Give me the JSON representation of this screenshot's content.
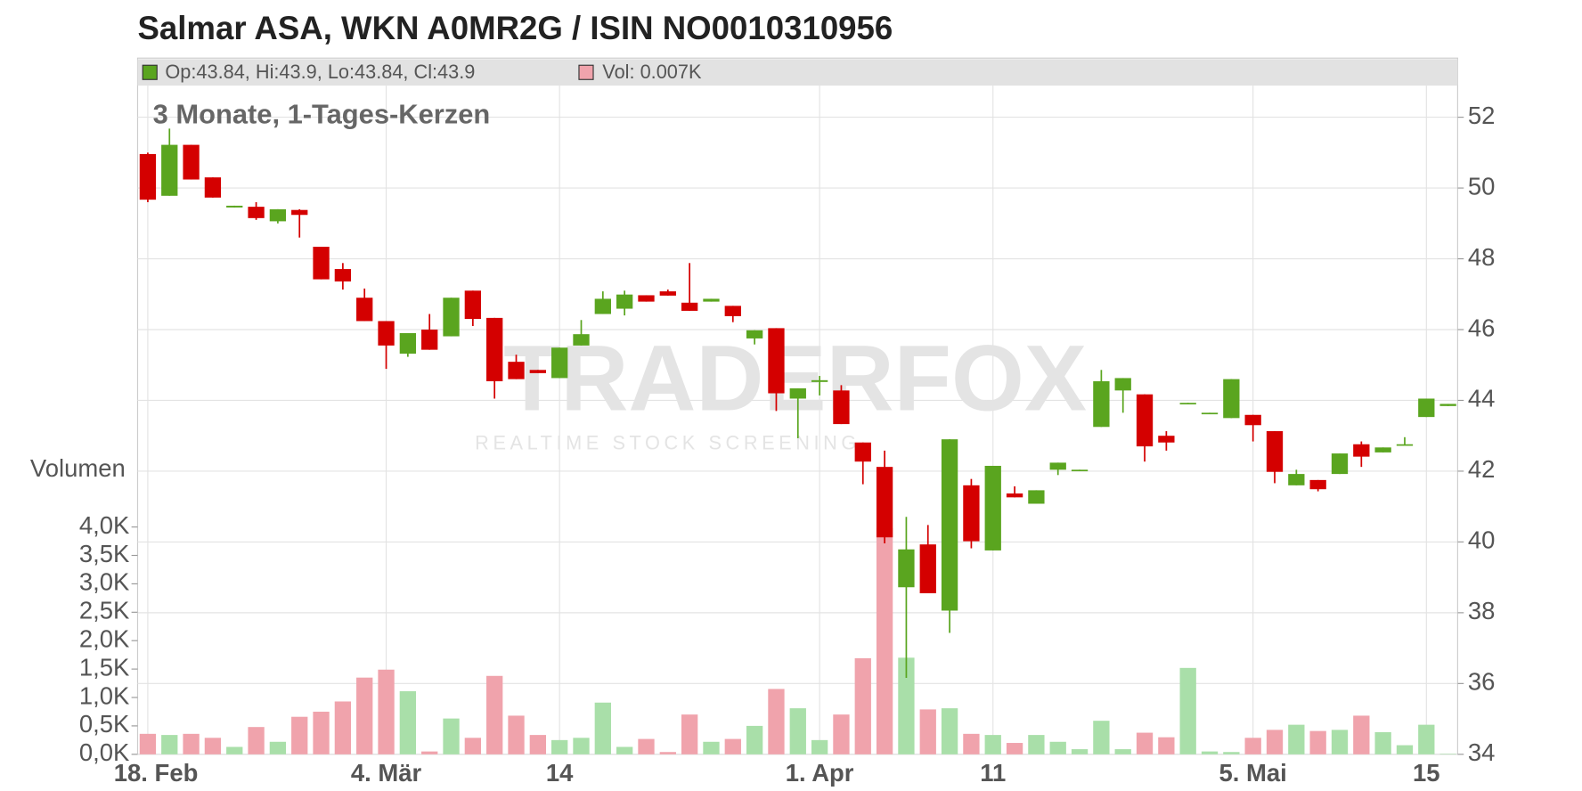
{
  "chart_data": {
    "type": "candlestick",
    "title": "Salmar ASA, WKN A0MR2G / ISIN NO0010310956",
    "subtitle": "3 Monate, 1-Tages-Kerzen",
    "legend_price": "Op:43.84, Hi:43.9, Lo:43.84, Cl:43.9",
    "legend_volume": "Vol: 0.007K",
    "volume_label": "Volumen",
    "watermark": "TRADERFOX",
    "watermark_subtitle": "REALTIME STOCK SCREENING",
    "categories": [
      "18. Feb",
      null,
      null,
      null,
      null,
      null,
      null,
      null,
      null,
      null,
      null,
      "4. Mär",
      null,
      null,
      null,
      null,
      null,
      null,
      null,
      "14",
      null,
      null,
      null,
      null,
      null,
      null,
      null,
      null,
      null,
      null,
      null,
      "1. Apr",
      null,
      null,
      null,
      null,
      null,
      null,
      null,
      "11",
      null,
      null,
      null,
      null,
      null,
      null,
      null,
      null,
      null,
      null,
      null,
      "5. Mai",
      null,
      null,
      null,
      null,
      null,
      null,
      null,
      "15",
      null
    ],
    "open": [
      50.96,
      49.78,
      51.22,
      50.3,
      49.45,
      49.47,
      49.06,
      49.38,
      48.34,
      47.71,
      46.9,
      46.24,
      45.32,
      46.0,
      45.81,
      47.1,
      46.33,
      45.09,
      44.86,
      44.63,
      45.55,
      46.44,
      46.59,
      46.97,
      47.08,
      46.76,
      46.79,
      46.67,
      45.75,
      46.04,
      44.05,
      44.52,
      44.28,
      42.81,
      42.12,
      38.72,
      39.93,
      38.06,
      41.6,
      39.76,
      41.37,
      41.08,
      42.04,
      42.02,
      43.25,
      44.28,
      44.17,
      43.0,
      43.9,
      43.63,
      43.5,
      43.59,
      43.13,
      41.6,
      41.75,
      41.92,
      42.76,
      42.53,
      42.73,
      43.53,
      43.84
    ],
    "high": [
      51.0,
      51.68,
      51.22,
      50.3,
      49.5,
      49.6,
      49.4,
      49.4,
      48.34,
      47.88,
      47.16,
      46.24,
      45.9,
      46.44,
      46.9,
      47.1,
      46.33,
      45.29,
      44.86,
      45.49,
      46.27,
      47.08,
      47.1,
      46.97,
      47.13,
      47.88,
      46.87,
      46.67,
      45.98,
      46.04,
      44.34,
      44.69,
      44.43,
      42.81,
      42.58,
      40.71,
      40.48,
      42.9,
      41.78,
      42.15,
      41.57,
      41.46,
      42.24,
      42.04,
      44.86,
      44.63,
      44.17,
      43.13,
      43.93,
      43.65,
      44.6,
      43.59,
      43.13,
      42.04,
      41.75,
      42.5,
      42.84,
      42.67,
      42.96,
      44.05,
      43.9
    ],
    "low": [
      49.6,
      49.78,
      50.24,
      49.73,
      49.45,
      49.1,
      49.0,
      48.6,
      47.42,
      47.13,
      46.24,
      44.89,
      45.23,
      45.43,
      45.81,
      46.1,
      44.05,
      44.6,
      44.77,
      44.63,
      45.55,
      46.44,
      46.4,
      46.79,
      46.96,
      46.53,
      46.79,
      46.21,
      45.58,
      43.7,
      42.93,
      44.14,
      43.33,
      41.63,
      39.96,
      36.16,
      38.55,
      37.43,
      39.82,
      39.76,
      41.26,
      41.08,
      41.89,
      42.02,
      43.25,
      43.65,
      42.27,
      42.58,
      43.9,
      43.63,
      43.5,
      42.84,
      41.66,
      41.6,
      41.43,
      41.92,
      42.12,
      42.53,
      42.73,
      43.53,
      43.84
    ],
    "close": [
      49.67,
      51.22,
      50.24,
      49.73,
      49.5,
      49.15,
      49.4,
      49.24,
      47.42,
      47.36,
      46.24,
      45.55,
      45.9,
      45.43,
      46.9,
      46.3,
      44.54,
      44.6,
      44.77,
      45.49,
      45.87,
      46.87,
      46.99,
      46.79,
      46.96,
      46.53,
      46.87,
      46.38,
      45.98,
      44.2,
      44.34,
      44.57,
      43.33,
      42.27,
      40.13,
      39.79,
      38.55,
      42.9,
      40.02,
      42.15,
      41.26,
      41.46,
      42.24,
      42.04,
      44.54,
      44.63,
      42.7,
      42.81,
      43.93,
      43.65,
      44.6,
      43.3,
      41.98,
      41.92,
      41.49,
      42.5,
      42.41,
      42.67,
      42.76,
      44.05,
      43.9
    ],
    "volume": [
      0.36,
      0.34,
      0.36,
      0.29,
      0.13,
      0.48,
      0.22,
      0.66,
      0.75,
      0.93,
      1.35,
      1.49,
      1.11,
      0.05,
      0.63,
      0.29,
      1.38,
      0.68,
      0.34,
      0.25,
      0.29,
      0.91,
      0.13,
      0.27,
      0.04,
      0.7,
      0.22,
      0.27,
      0.5,
      1.15,
      0.81,
      0.25,
      0.7,
      1.69,
      3.98,
      1.7,
      0.79,
      0.81,
      0.36,
      0.34,
      0.2,
      0.34,
      0.22,
      0.09,
      0.59,
      0.09,
      0.38,
      0.3,
      1.52,
      0.05,
      0.04,
      0.29,
      0.43,
      0.52,
      0.41,
      0.43,
      0.68,
      0.39,
      0.16,
      0.52,
      0.007
    ],
    "ylim": [
      34,
      52
    ],
    "yticks": [
      34,
      36,
      38,
      40,
      42,
      44,
      46,
      48,
      50,
      52
    ],
    "volume_ylim": [
      0,
      4
    ],
    "volume_yticks": [
      {
        "value": 0,
        "label": "0,0K"
      },
      {
        "value": 0.5,
        "label": "0,5K"
      },
      {
        "value": 1,
        "label": "1,0K"
      },
      {
        "value": 1.5,
        "label": "1,5K"
      },
      {
        "value": 2,
        "label": "2,0K"
      },
      {
        "value": 2.5,
        "label": "2,5K"
      },
      {
        "value": 3,
        "label": "3,0K"
      },
      {
        "value": 3.5,
        "label": "3,5K"
      },
      {
        "value": 4,
        "label": "4,0K"
      }
    ],
    "up_color": "#5aa51f",
    "down_color": "#d40000",
    "volume_up_color": "#a9dfa9",
    "volume_down_color": "#f0a3ac",
    "grid": true
  }
}
